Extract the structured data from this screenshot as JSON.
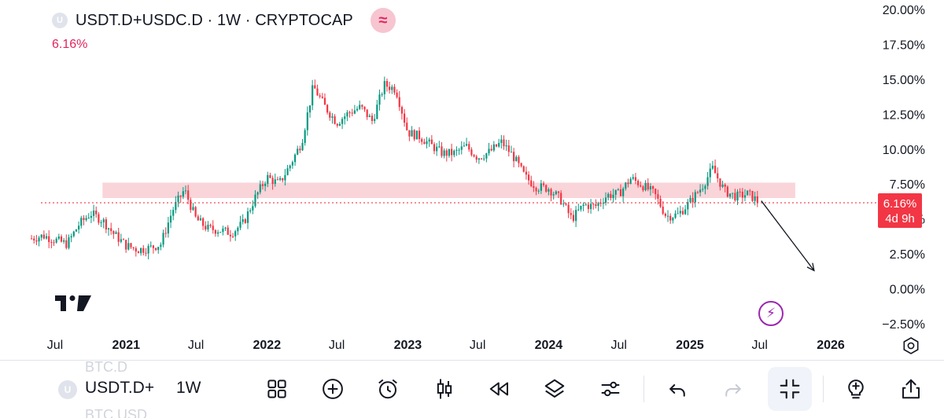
{
  "header": {
    "symbol_logo": "U",
    "title": "USDT.D+USDC.D · 1W · CRYPTOCAP",
    "indicator_icon": "wave-icon",
    "last_value": "6.16%"
  },
  "price_label": {
    "value": "6.16%",
    "countdown": "4d 9h",
    "color": "#f23645"
  },
  "chart_data": {
    "type": "candlestick",
    "y_axis": {
      "range": [
        -2.5,
        20.0
      ],
      "ticks": [
        "20.00%",
        "17.50%",
        "15.00%",
        "12.50%",
        "10.00%",
        "7.50%",
        "5.00%",
        "2.50%",
        "0.00%",
        "−2.50%"
      ],
      "tick_values": [
        20.0,
        17.5,
        15.0,
        12.5,
        10.0,
        7.5,
        5.0,
        2.5,
        0.0,
        -2.5
      ]
    },
    "x_axis": {
      "ticks": [
        {
          "label": "Jul",
          "bold": false,
          "date": "2020-07-01"
        },
        {
          "label": "2021",
          "bold": true,
          "date": "2021-01-01"
        },
        {
          "label": "Jul",
          "bold": false,
          "date": "2021-07-01"
        },
        {
          "label": "2022",
          "bold": true,
          "date": "2022-01-01"
        },
        {
          "label": "Jul",
          "bold": false,
          "date": "2022-07-01"
        },
        {
          "label": "2023",
          "bold": true,
          "date": "2023-01-01"
        },
        {
          "label": "Jul",
          "bold": false,
          "date": "2023-07-01"
        },
        {
          "label": "2024",
          "bold": true,
          "date": "2024-01-01"
        },
        {
          "label": "Jul",
          "bold": false,
          "date": "2024-07-01"
        },
        {
          "label": "2025",
          "bold": true,
          "date": "2025-01-01"
        },
        {
          "label": "Jul",
          "bold": false,
          "date": "2025-07-01"
        },
        {
          "label": "2026",
          "bold": true,
          "date": "2026-01-01"
        }
      ]
    },
    "series": [
      {
        "date": "2020-05",
        "value": 3.6
      },
      {
        "date": "2020-06",
        "value": 3.8
      },
      {
        "date": "2020-07",
        "value": 3.5
      },
      {
        "date": "2020-08",
        "value": 3.2
      },
      {
        "date": "2020-09",
        "value": 4.6
      },
      {
        "date": "2020-10",
        "value": 5.4
      },
      {
        "date": "2020-11",
        "value": 4.9
      },
      {
        "date": "2020-12",
        "value": 3.9
      },
      {
        "date": "2021-01",
        "value": 3.1
      },
      {
        "date": "2021-02",
        "value": 2.8
      },
      {
        "date": "2021-03",
        "value": 2.9
      },
      {
        "date": "2021-04",
        "value": 3.2
      },
      {
        "date": "2021-05",
        "value": 5.6
      },
      {
        "date": "2021-06",
        "value": 7.1
      },
      {
        "date": "2021-07",
        "value": 5.0
      },
      {
        "date": "2021-08",
        "value": 4.3
      },
      {
        "date": "2021-09",
        "value": 4.2
      },
      {
        "date": "2021-10",
        "value": 4.0
      },
      {
        "date": "2021-11",
        "value": 4.7
      },
      {
        "date": "2021-12",
        "value": 6.5
      },
      {
        "date": "2022-01",
        "value": 8.0
      },
      {
        "date": "2022-02",
        "value": 7.5
      },
      {
        "date": "2022-03",
        "value": 8.8
      },
      {
        "date": "2022-04",
        "value": 10.5
      },
      {
        "date": "2022-05",
        "value": 14.5
      },
      {
        "date": "2022-06",
        "value": 13.0
      },
      {
        "date": "2022-07",
        "value": 11.9
      },
      {
        "date": "2022-08",
        "value": 12.6
      },
      {
        "date": "2022-09",
        "value": 13.0
      },
      {
        "date": "2022-10",
        "value": 12.0
      },
      {
        "date": "2022-11",
        "value": 14.6
      },
      {
        "date": "2022-12",
        "value": 14.3
      },
      {
        "date": "2023-01",
        "value": 11.2
      },
      {
        "date": "2023-02",
        "value": 10.9
      },
      {
        "date": "2023-03",
        "value": 10.3
      },
      {
        "date": "2023-04",
        "value": 9.7
      },
      {
        "date": "2023-05",
        "value": 9.7
      },
      {
        "date": "2023-06",
        "value": 10.2
      },
      {
        "date": "2023-07",
        "value": 9.4
      },
      {
        "date": "2023-08",
        "value": 9.8
      },
      {
        "date": "2023-09",
        "value": 10.5
      },
      {
        "date": "2023-10",
        "value": 9.5
      },
      {
        "date": "2023-11",
        "value": 8.0
      },
      {
        "date": "2023-12",
        "value": 7.3
      },
      {
        "date": "2024-01",
        "value": 7.2
      },
      {
        "date": "2024-02",
        "value": 6.4
      },
      {
        "date": "2024-03",
        "value": 5.0
      },
      {
        "date": "2024-04",
        "value": 6.0
      },
      {
        "date": "2024-05",
        "value": 5.9
      },
      {
        "date": "2024-06",
        "value": 6.7
      },
      {
        "date": "2024-07",
        "value": 6.8
      },
      {
        "date": "2024-08",
        "value": 7.9
      },
      {
        "date": "2024-09",
        "value": 7.4
      },
      {
        "date": "2024-10",
        "value": 6.8
      },
      {
        "date": "2024-11",
        "value": 5.2
      },
      {
        "date": "2024-12",
        "value": 5.3
      },
      {
        "date": "2025-01",
        "value": 6.2
      },
      {
        "date": "2025-02",
        "value": 7.3
      },
      {
        "date": "2025-03",
        "value": 8.6
      },
      {
        "date": "2025-04",
        "value": 7.0
      },
      {
        "date": "2025-05",
        "value": 6.6
      },
      {
        "date": "2025-06",
        "value": 6.8
      },
      {
        "date": "2025-07",
        "value": 6.16
      }
    ],
    "last_value": 6.16,
    "zone": {
      "from_date": "2020-11",
      "to_date": "2025-10",
      "low": 6.5,
      "high": 7.6,
      "color": "#f7c5cc"
    },
    "projection": {
      "from_date": "2025-07",
      "from_value": 6.3,
      "to_date": "2025-10",
      "to_value": 1.3
    },
    "up_color": "#089981",
    "down_color": "#f23645",
    "grid": false
  },
  "watermark": {
    "logo": "tradingview-logo"
  },
  "chart_icons": {
    "lightning": "lightning-icon",
    "settings": "gear-icon"
  },
  "bottom_bar": {
    "ghost_above": "BTC.D",
    "ghost_below": "BTC.USD",
    "symbol_logo": "U",
    "symbol": "USDT.D+",
    "timeframe": "1W",
    "tools": [
      "grid-icon",
      "plus-circle-icon",
      "alarm-icon",
      "candles-icon",
      "rewind-icon",
      "layers-icon",
      "sliders-icon",
      "undo-icon",
      "redo-icon",
      "fullscreen-exit-icon",
      "bulb-plus-icon",
      "share-icon"
    ]
  }
}
